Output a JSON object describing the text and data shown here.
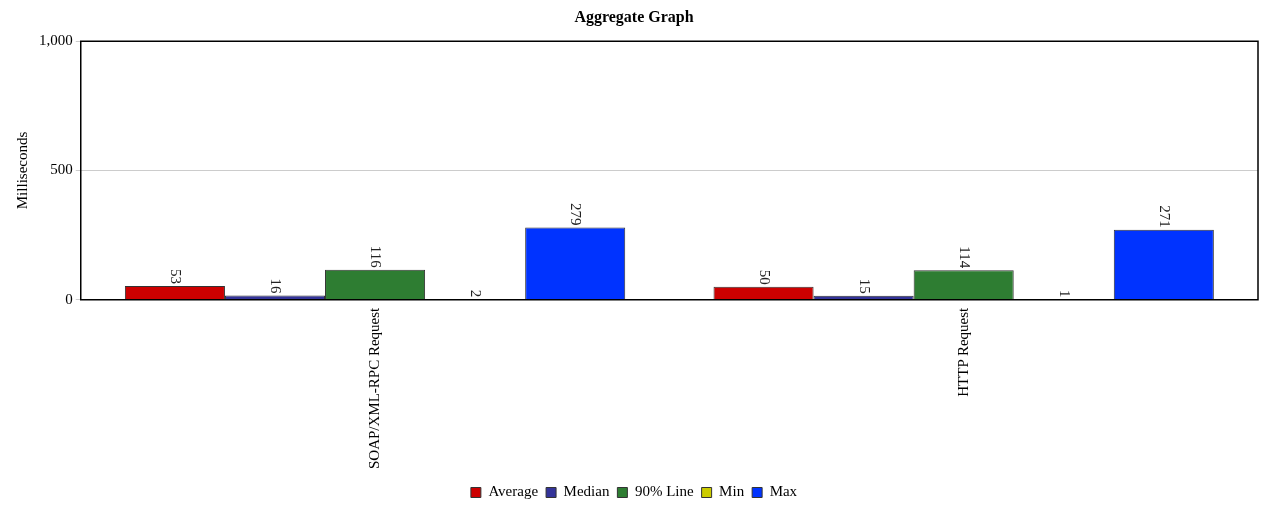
{
  "chart_data": {
    "type": "bar",
    "title": "Aggregate Graph",
    "ylabel": "Milliseconds",
    "categories": [
      "SOAP/XML-RPC Request",
      "HTTP Request"
    ],
    "series": [
      {
        "name": "Average",
        "color": "#cc0000",
        "values": [
          53,
          50
        ]
      },
      {
        "name": "Median",
        "color": "#333399",
        "values": [
          16,
          15
        ]
      },
      {
        "name": "90% Line",
        "color": "#2e7d32",
        "values": [
          116,
          114
        ]
      },
      {
        "name": "Min",
        "color": "#cccc00",
        "values": [
          2,
          1
        ]
      },
      {
        "name": "Max",
        "color": "#0033ff",
        "values": [
          279,
          271
        ]
      }
    ],
    "ylim": [
      0,
      1000
    ],
    "yticks": [
      0,
      500,
      {
        "value": 1000,
        "label": "1,000"
      }
    ],
    "grid": "y",
    "legend": "bottom",
    "data_labels": true
  }
}
